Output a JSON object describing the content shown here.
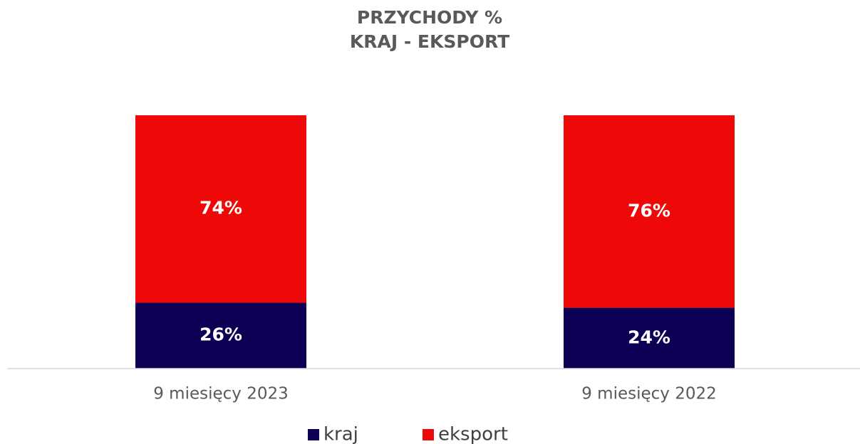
{
  "chart_data": {
    "type": "stacked_bar",
    "title": [
      "PRZYCHODY %",
      "KRAJ - EKSPORT"
    ],
    "categories": [
      "9 miesięcy 2023",
      "9 miesięcy 2022"
    ],
    "series": [
      {
        "name": "kraj",
        "color": "#0b0053",
        "values": [
          26,
          24
        ],
        "value_labels": [
          "26%",
          "24%"
        ]
      },
      {
        "name": "eksport",
        "color": "#ee0808",
        "values": [
          74,
          76
        ],
        "value_labels": [
          "74%",
          "76%"
        ]
      }
    ],
    "ylim": [
      0,
      100
    ]
  }
}
